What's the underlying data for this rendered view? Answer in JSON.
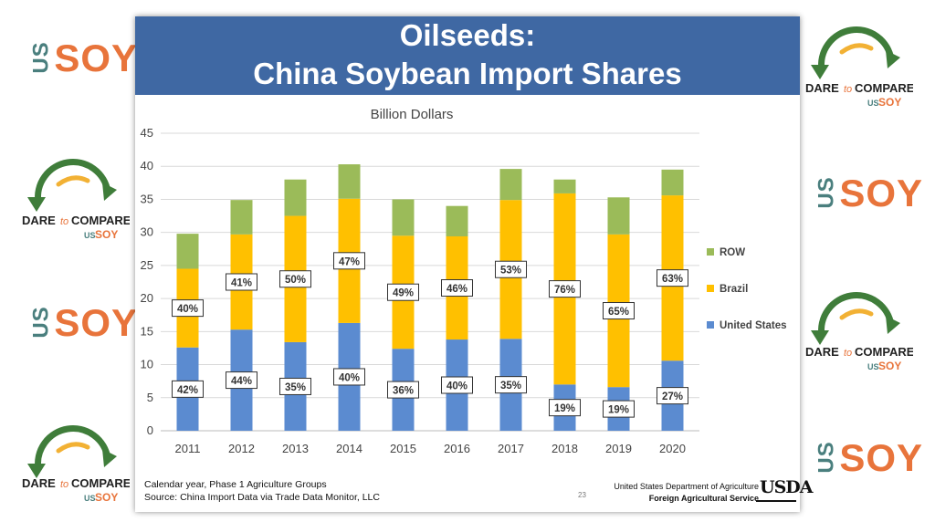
{
  "slide": {
    "title_line1": "Oilseeds:",
    "title_line2": "China Soybean Import Shares",
    "footer_note1": "Calendar year, Phase 1 Agriculture Groups",
    "footer_note2": "Source: China Import Data via Trade Data Monitor, LLC",
    "page_number": "23",
    "agency_line1": "United States Department of Agriculture",
    "agency_line2": "Foreign Agricultural Service",
    "agency_logo_text": "USDA"
  },
  "logos": {
    "us_text": "US",
    "soy_text": "SOY",
    "dare_text": "DARE",
    "to_text": "to",
    "compare_text": "COMPARE"
  },
  "colors": {
    "banner": "#3f68a3",
    "united_states": "#5b8bd0",
    "brazil": "#ffc000",
    "row": "#9bbb59",
    "soy_orange": "#e8743b",
    "soy_teal": "#4a7f7e",
    "arrow_green": "#3f7d3a"
  },
  "chart_data": {
    "type": "bar",
    "stacked": true,
    "title": "Billion Dollars",
    "categories": [
      "2011",
      "2012",
      "2013",
      "2014",
      "2015",
      "2016",
      "2017",
      "2018",
      "2019",
      "2020"
    ],
    "ylim": [
      0,
      45
    ],
    "yticks": [
      0,
      5,
      10,
      15,
      20,
      25,
      30,
      35,
      40,
      45
    ],
    "grid": true,
    "legend_position": "right",
    "series": [
      {
        "name": "United States",
        "color": "#5b8bd0",
        "values": [
          12.6,
          15.3,
          13.4,
          16.3,
          12.4,
          13.8,
          13.9,
          7.0,
          6.6,
          10.6
        ],
        "labels": [
          "42%",
          "44%",
          "35%",
          "40%",
          "36%",
          "40%",
          "35%",
          "19%",
          "19%",
          "27%"
        ]
      },
      {
        "name": "Brazil",
        "color": "#ffc000",
        "values": [
          11.9,
          14.4,
          19.1,
          18.8,
          17.1,
          15.6,
          21.0,
          28.9,
          23.1,
          25.0
        ],
        "labels": [
          "40%",
          "41%",
          "50%",
          "47%",
          "49%",
          "46%",
          "53%",
          "76%",
          "65%",
          "63%"
        ]
      },
      {
        "name": "ROW",
        "color": "#9bbb59",
        "values": [
          5.3,
          5.2,
          5.5,
          5.2,
          5.5,
          4.6,
          4.7,
          2.1,
          5.6,
          3.9
        ]
      }
    ]
  }
}
